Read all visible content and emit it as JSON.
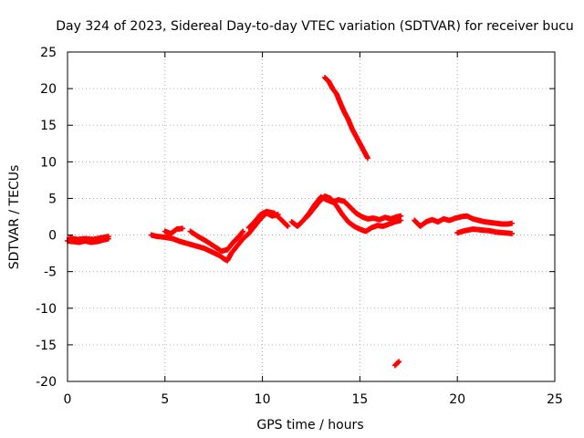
{
  "chart_data": {
    "type": "scatter",
    "title": "Day 324 of 2023, Sidereal Day-to-day VTEC variation (SDTVAR) for receiver bucu",
    "xlabel": "GPS time / hours",
    "ylabel": "SDTVAR / TECUs",
    "xlim": [
      0,
      25
    ],
    "ylim": [
      -20,
      25
    ],
    "xticks": [
      0,
      5,
      10,
      15,
      20,
      25
    ],
    "yticks": [
      -20,
      -15,
      -10,
      -5,
      0,
      5,
      10,
      15,
      20,
      25
    ],
    "grid": true,
    "marker_color": "#ff0000",
    "series": [
      {
        "name": "SDTVAR",
        "segments": [
          [
            [
              0.0,
              -0.8
            ],
            [
              0.3,
              -0.9
            ],
            [
              0.6,
              -1.0
            ],
            [
              0.9,
              -0.8
            ],
            [
              1.2,
              -1.0
            ],
            [
              1.5,
              -0.9
            ],
            [
              1.8,
              -0.7
            ],
            [
              2.1,
              -0.5
            ]
          ],
          [
            [
              0.1,
              -0.4
            ],
            [
              0.5,
              -0.6
            ],
            [
              0.9,
              -0.5
            ],
            [
              1.3,
              -0.6
            ],
            [
              1.7,
              -0.4
            ],
            [
              2.1,
              -0.2
            ]
          ],
          [
            [
              4.3,
              0.0
            ],
            [
              4.6,
              -0.2
            ],
            [
              5.0,
              -0.3
            ],
            [
              5.4,
              -0.5
            ],
            [
              5.8,
              -0.9
            ],
            [
              6.2,
              -1.2
            ],
            [
              6.6,
              -1.5
            ],
            [
              7.0,
              -1.8
            ],
            [
              7.4,
              -2.3
            ],
            [
              7.8,
              -2.8
            ],
            [
              8.0,
              -3.2
            ],
            [
              8.2,
              -3.5
            ],
            [
              8.4,
              -2.5
            ],
            [
              8.7,
              -1.5
            ],
            [
              9.0,
              -0.5
            ],
            [
              9.3,
              0.2
            ],
            [
              9.6,
              1.2
            ],
            [
              9.9,
              2.2
            ],
            [
              10.2,
              3.0
            ],
            [
              10.5,
              2.6
            ],
            [
              10.8,
              2.8
            ]
          ],
          [
            [
              5.0,
              0.5
            ],
            [
              5.3,
              0.2
            ],
            [
              5.6,
              0.8
            ],
            [
              5.9,
              0.9
            ]
          ],
          [
            [
              6.3,
              0.5
            ],
            [
              6.7,
              -0.2
            ],
            [
              7.1,
              -0.8
            ],
            [
              7.5,
              -1.5
            ],
            [
              7.9,
              -2.2
            ],
            [
              8.2,
              -2.0
            ],
            [
              8.5,
              -1.0
            ],
            [
              8.8,
              -0.2
            ],
            [
              9.0,
              0.5
            ]
          ],
          [
            [
              9.3,
              1.0
            ],
            [
              9.6,
              1.8
            ],
            [
              9.9,
              2.8
            ],
            [
              10.2,
              3.2
            ],
            [
              10.6,
              3.0
            ],
            [
              11.0,
              2.0
            ],
            [
              11.3,
              1.2
            ]
          ],
          [
            [
              11.5,
              1.8
            ],
            [
              11.8,
              1.2
            ],
            [
              12.1,
              2.0
            ],
            [
              12.4,
              3.0
            ],
            [
              12.7,
              4.2
            ],
            [
              13.0,
              5.2
            ],
            [
              13.3,
              4.8
            ],
            [
              13.6,
              4.5
            ],
            [
              13.9,
              4.8
            ],
            [
              14.2,
              4.6
            ],
            [
              14.5,
              3.8
            ],
            [
              14.8,
              3.0
            ],
            [
              15.1,
              2.5
            ],
            [
              15.4,
              2.2
            ],
            [
              15.7,
              2.3
            ],
            [
              16.0,
              2.1
            ],
            [
              16.3,
              2.4
            ],
            [
              16.6,
              2.2
            ],
            [
              16.9,
              2.5
            ],
            [
              17.1,
              2.6
            ]
          ],
          [
            [
              12.3,
              2.5
            ],
            [
              12.6,
              3.5
            ],
            [
              12.9,
              4.5
            ],
            [
              13.2,
              5.3
            ],
            [
              13.5,
              5.0
            ],
            [
              13.8,
              4.0
            ],
            [
              14.1,
              2.8
            ],
            [
              14.4,
              1.8
            ],
            [
              14.7,
              1.2
            ],
            [
              15.0,
              0.8
            ],
            [
              15.3,
              0.5
            ],
            [
              15.6,
              1.0
            ],
            [
              15.9,
              1.3
            ],
            [
              16.2,
              1.2
            ],
            [
              16.5,
              1.5
            ],
            [
              16.8,
              1.8
            ],
            [
              17.1,
              2.0
            ]
          ],
          [
            [
              13.2,
              21.5
            ],
            [
              13.4,
              21.0
            ],
            [
              13.6,
              20.0
            ],
            [
              13.8,
              19.3
            ],
            [
              14.0,
              18.0
            ],
            [
              14.2,
              16.8
            ],
            [
              14.4,
              15.8
            ],
            [
              14.6,
              14.5
            ],
            [
              14.8,
              13.5
            ],
            [
              15.0,
              12.5
            ],
            [
              15.2,
              11.5
            ],
            [
              15.4,
              10.5
            ]
          ],
          [
            [
              16.8,
              -17.8
            ],
            [
              17.0,
              -17.3
            ]
          ],
          [
            [
              17.8,
              2.0
            ],
            [
              18.1,
              1.2
            ],
            [
              18.4,
              1.8
            ],
            [
              18.7,
              2.1
            ],
            [
              19.0,
              1.8
            ],
            [
              19.3,
              2.2
            ],
            [
              19.6,
              2.0
            ],
            [
              19.9,
              2.3
            ],
            [
              20.2,
              2.5
            ],
            [
              20.5,
              2.6
            ],
            [
              20.8,
              2.2
            ],
            [
              21.1,
              2.0
            ],
            [
              21.4,
              1.8
            ],
            [
              21.7,
              1.7
            ],
            [
              22.0,
              1.6
            ],
            [
              22.3,
              1.5
            ],
            [
              22.6,
              1.5
            ],
            [
              22.8,
              1.6
            ]
          ],
          [
            [
              20.0,
              0.3
            ],
            [
              20.4,
              0.6
            ],
            [
              20.8,
              0.8
            ],
            [
              21.2,
              0.7
            ],
            [
              21.6,
              0.6
            ],
            [
              22.0,
              0.4
            ],
            [
              22.4,
              0.3
            ],
            [
              22.8,
              0.2
            ]
          ]
        ]
      }
    ]
  }
}
